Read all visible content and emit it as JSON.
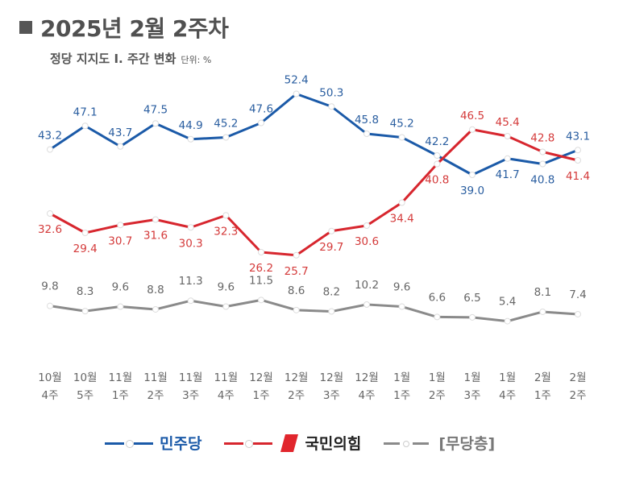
{
  "header": {
    "title": "2025년 2월 2주차",
    "subtitle": "정당 지지도 Ⅰ. 주간 변화",
    "unit": "단위: %"
  },
  "legend": {
    "dem_label": "민주당",
    "ppp_label": "국민의힘",
    "none_label": "[무당층]"
  },
  "colors": {
    "dem": "#1b5aa8",
    "ppp": "#d7262e",
    "none": "#8a8a8a"
  },
  "chart_data": {
    "type": "line",
    "categories": [
      [
        "10월",
        "4주"
      ],
      [
        "10월",
        "5주"
      ],
      [
        "11월",
        "1주"
      ],
      [
        "11월",
        "2주"
      ],
      [
        "11월",
        "3주"
      ],
      [
        "11월",
        "4주"
      ],
      [
        "12월",
        "1주"
      ],
      [
        "12월",
        "2주"
      ],
      [
        "12월",
        "3주"
      ],
      [
        "12월",
        "4주"
      ],
      [
        "1월",
        "1주"
      ],
      [
        "1월",
        "2주"
      ],
      [
        "1월",
        "3주"
      ],
      [
        "1월",
        "4주"
      ],
      [
        "2월",
        "1주"
      ],
      [
        "2월",
        "2주"
      ]
    ],
    "series": [
      {
        "name": "민주당",
        "values": [
          43.2,
          47.1,
          43.7,
          47.5,
          44.9,
          45.2,
          47.6,
          52.4,
          50.3,
          45.8,
          45.2,
          42.2,
          39.0,
          41.7,
          40.8,
          43.1
        ],
        "labels": [
          "43.2",
          "47.1",
          "43.7",
          "47.5",
          "44.9",
          "45.2",
          "47.6",
          "52.4",
          "50.3",
          "45.8",
          "45.2",
          "42.2",
          "39.0",
          "41.7",
          "40.8",
          "43.1"
        ]
      },
      {
        "name": "국민의힘",
        "values": [
          32.6,
          29.4,
          30.7,
          31.6,
          30.3,
          32.3,
          26.2,
          25.7,
          29.7,
          30.6,
          34.4,
          40.8,
          46.5,
          45.4,
          42.8,
          41.4
        ],
        "labels": [
          "32.6",
          "29.4",
          "30.7",
          "31.6",
          "30.3",
          "32.3",
          "26.2",
          "25.7",
          "29.7",
          "30.6",
          "34.4",
          "40.8",
          "46.5",
          "45.4",
          "42.8",
          "41.4"
        ]
      },
      {
        "name": "[무당층]",
        "values": [
          9.8,
          8.3,
          9.6,
          8.8,
          11.3,
          9.6,
          11.5,
          8.6,
          8.2,
          10.2,
          9.6,
          6.6,
          6.5,
          5.4,
          8.1,
          7.4
        ],
        "labels": [
          "9.8",
          "8.3",
          "9.6",
          "8.8",
          "11.3",
          "9.6",
          "11.5",
          "8.6",
          "8.2",
          "10.2",
          "9.6",
          "6.6",
          "6.5",
          "5.4",
          "8.1",
          "7.4"
        ]
      }
    ]
  }
}
